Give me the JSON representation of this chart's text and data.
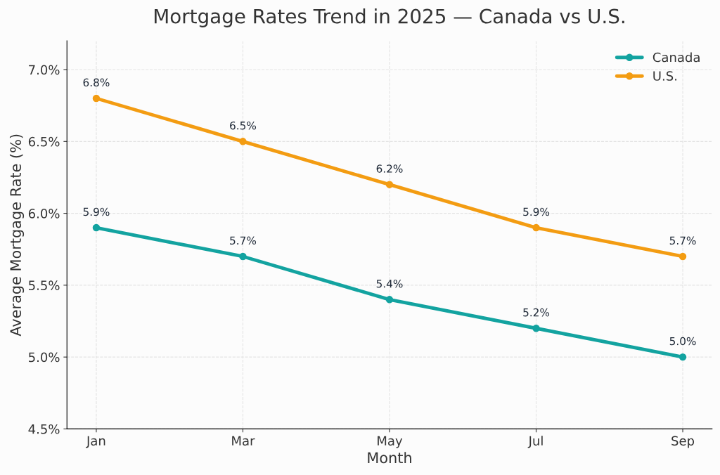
{
  "chart_data": {
    "type": "line",
    "title": "Mortgage Rates Trend in 2025 — Canada vs U.S.",
    "xlabel": "Month",
    "ylabel": "Average Mortgage Rate (%)",
    "categories": [
      "Jan",
      "Mar",
      "May",
      "Jul",
      "Sep"
    ],
    "series": [
      {
        "name": "Canada",
        "color": "#13a3a0",
        "values": [
          5.9,
          5.7,
          5.4,
          5.2,
          5.0
        ],
        "value_labels": [
          "5.9%",
          "5.7%",
          "5.4%",
          "5.2%",
          "5.0%"
        ]
      },
      {
        "name": "U.S.",
        "color": "#f39c12",
        "values": [
          6.8,
          6.5,
          6.2,
          5.9,
          5.7
        ],
        "value_labels": [
          "6.8%",
          "6.5%",
          "6.2%",
          "5.9%",
          "5.7%"
        ]
      }
    ],
    "ylim": [
      4.5,
      7.2
    ],
    "yticks": [
      {
        "value": 4.5,
        "label": "4.5%"
      },
      {
        "value": 5.0,
        "label": "5.0%"
      },
      {
        "value": 5.5,
        "label": "5.5%"
      },
      {
        "value": 6.0,
        "label": "6.0%"
      },
      {
        "value": 6.5,
        "label": "6.5%"
      },
      {
        "value": 7.0,
        "label": "7.0%"
      }
    ],
    "grid": true,
    "legend": "top right",
    "marker": "circle",
    "line_style": "solid"
  }
}
